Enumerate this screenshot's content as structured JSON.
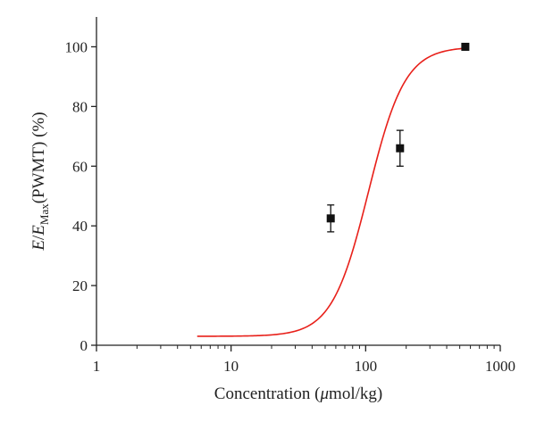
{
  "chart_data": {
    "type": "scatter",
    "title": "",
    "xlabel": "Concentration (μmol/kg)",
    "xlabel_prefix": "Concentration (",
    "xlabel_mu": "μ",
    "xlabel_suffix": "mol/kg)",
    "ylabel": "E/E_Max (PWMT) (%)",
    "ylabel_E": "E",
    "ylabel_slash": "/",
    "ylabel_E2": "E",
    "ylabel_sub": "Max",
    "ylabel_rest": "(PWMT) (%)",
    "xscale": "log",
    "xlim": [
      1,
      1000
    ],
    "ylim": [
      0,
      110
    ],
    "xticks": [
      1,
      10,
      100,
      1000
    ],
    "xtick_labels": [
      "1",
      "10",
      "100",
      "1000"
    ],
    "yticks": [
      0,
      20,
      40,
      60,
      80,
      100
    ],
    "ytick_labels": [
      "0",
      "20",
      "40",
      "60",
      "80",
      "100"
    ],
    "series": [
      {
        "name": "fitted curve",
        "kind": "line",
        "color": "#e8201a",
        "model": "sigmoid",
        "bottom": 3,
        "top": 100,
        "ec50": 105,
        "hill": 3.2,
        "x_range": [
          5.6,
          560
        ]
      },
      {
        "name": "observed",
        "kind": "points",
        "color": "#111111",
        "x": [
          55,
          180,
          550
        ],
        "y": [
          42.5,
          66,
          100
        ],
        "err": [
          4.5,
          6.0,
          0
        ]
      }
    ]
  }
}
